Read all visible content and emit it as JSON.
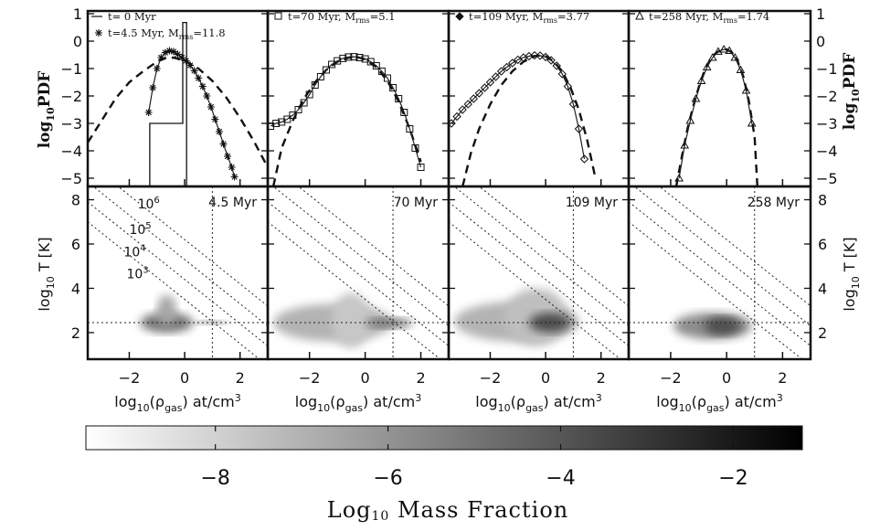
{
  "chart_data": {
    "type": "multi-panel",
    "density_axis": {
      "label_main": "log",
      "label_sub": "10",
      "label_rest": "(ρ",
      "label_gas": "gas",
      "label_unit": ") at/cm",
      "label_sup": "3",
      "xlim": [
        -3.5,
        3.0
      ],
      "ticks": [
        -2,
        0,
        2
      ],
      "tick_labels": [
        "−2",
        "0",
        "2"
      ]
    },
    "pdf_axis": {
      "label": "log",
      "label_sub": "10",
      "label_rest": "PDF",
      "ylim": [
        -5.3,
        1.1
      ],
      "ticks": [
        -5,
        -4,
        -3,
        -2,
        -1,
        0,
        1
      ],
      "tick_labels": [
        "−5",
        "−4",
        "−3",
        "−2",
        "−1",
        "0",
        "1"
      ]
    },
    "temp_axis": {
      "label": "log",
      "label_sub": "10",
      "label_rest": " T [K]",
      "ylim": [
        0.8,
        8.6
      ],
      "ticks": [
        2,
        4,
        6,
        8
      ],
      "tick_labels": [
        "2",
        "4",
        "6",
        "8"
      ]
    },
    "reference_lines": {
      "dotted_vertical_density": 1.0,
      "dotted_horizontal_logT": 2.45,
      "isobar_labels": [
        "10",
        "10",
        "10",
        "10"
      ],
      "isobar_exps": [
        "6",
        "5",
        "4",
        "3"
      ],
      "isobar_intercepts": [
        6.2,
        5.3,
        4.4,
        3.5
      ],
      "isobar_label_positions": [
        [
          -1.3,
          7.6
        ],
        [
          -1.6,
          6.45
        ],
        [
          -1.8,
          5.45
        ],
        [
          -1.7,
          4.45
        ]
      ]
    },
    "panels": [
      {
        "time_label": "4.5 Myr",
        "legend": [
          {
            "text": "t=  0 Myr",
            "marker": "line"
          },
          {
            "text": "t=4.5 Myr, M",
            "sub": "rms",
            "tail": "=11.8",
            "marker": "asterisk"
          }
        ],
        "initial_pdf": {
          "x": [
            -1.26,
            -1.26,
            -0.07,
            -0.07,
            0.07,
            0.07
          ],
          "y": [
            -5.3,
            -3.0,
            -3.0,
            0.68,
            0.68,
            -5.3
          ]
        },
        "gaussian_pdf": {
          "x": [
            -3.5,
            -3.0,
            -2.5,
            -2.0,
            -1.5,
            -1.0,
            -0.7,
            -0.4,
            0.0,
            0.5,
            1.0,
            1.5,
            2.0,
            2.5,
            3.0
          ],
          "y": [
            -3.7,
            -2.9,
            -2.1,
            -1.5,
            -1.1,
            -0.75,
            -0.62,
            -0.6,
            -0.72,
            -1.0,
            -1.45,
            -2.05,
            -2.8,
            -3.65,
            -4.6
          ]
        },
        "sim_pdf": {
          "x": [
            -1.3,
            -1.15,
            -1.0,
            -0.85,
            -0.7,
            -0.55,
            -0.4,
            -0.25,
            -0.1,
            0.05,
            0.2,
            0.35,
            0.5,
            0.65,
            0.8,
            0.95,
            1.1,
            1.25,
            1.4,
            1.55,
            1.7,
            1.8
          ],
          "y": [
            -2.6,
            -1.7,
            -1.0,
            -0.6,
            -0.42,
            -0.35,
            -0.38,
            -0.48,
            -0.6,
            -0.72,
            -0.88,
            -1.08,
            -1.35,
            -1.65,
            -2.0,
            -2.4,
            -2.85,
            -3.3,
            -3.75,
            -4.2,
            -4.6,
            -4.95
          ]
        },
        "sim_marker": "asterisk",
        "gas": {
          "blobs": [
            {
              "x": [
                -1.6,
                0.3
              ],
              "y": [
                2.0,
                2.9
              ],
              "shade": 0.55
            },
            {
              "x": [
                -1.0,
                -0.3
              ],
              "y": [
                2.3,
                3.7
              ],
              "shade": 0.35
            },
            {
              "x": [
                0.3,
                1.6
              ],
              "y": [
                2.35,
                2.55
              ],
              "shade": 0.45
            }
          ]
        }
      },
      {
        "time_label": "70  Myr",
        "legend": [
          {
            "text": "t=70 Myr, M",
            "sub": "rms",
            "tail": "=5.1",
            "marker": "square"
          }
        ],
        "gaussian_pdf": {
          "x": [
            -3.3,
            -3.0,
            -2.6,
            -2.2,
            -1.8,
            -1.4,
            -1.0,
            -0.6,
            -0.3,
            0.0,
            0.4,
            0.8,
            1.2,
            1.6,
            2.0
          ],
          "y": [
            -5.3,
            -3.9,
            -2.9,
            -2.1,
            -1.5,
            -1.05,
            -0.75,
            -0.6,
            -0.58,
            -0.66,
            -0.95,
            -1.45,
            -2.2,
            -3.2,
            -4.4
          ]
        },
        "sim_pdf": {
          "x": [
            -3.4,
            -3.2,
            -3.0,
            -2.8,
            -2.6,
            -2.4,
            -2.2,
            -2.0,
            -1.8,
            -1.6,
            -1.4,
            -1.2,
            -1.0,
            -0.8,
            -0.6,
            -0.4,
            -0.2,
            0.0,
            0.2,
            0.4,
            0.6,
            0.8,
            1.0,
            1.2,
            1.4,
            1.6,
            1.8,
            2.0
          ],
          "y": [
            -3.1,
            -3.0,
            -2.95,
            -2.85,
            -2.7,
            -2.5,
            -2.25,
            -1.95,
            -1.6,
            -1.3,
            -1.05,
            -0.85,
            -0.72,
            -0.63,
            -0.58,
            -0.57,
            -0.6,
            -0.65,
            -0.75,
            -0.9,
            -1.1,
            -1.35,
            -1.7,
            -2.1,
            -2.6,
            -3.2,
            -3.9,
            -4.6
          ]
        },
        "sim_marker": "square",
        "gas": {
          "blobs": [
            {
              "x": [
                -3.3,
                1.0
              ],
              "y": [
                1.6,
                3.3
              ],
              "shade": 0.3
            },
            {
              "x": [
                -1.2,
                0.2
              ],
              "y": [
                1.3,
                3.8
              ],
              "shade": 0.22
            },
            {
              "x": [
                0.0,
                1.7
              ],
              "y": [
                2.2,
                2.65
              ],
              "shade": 0.55
            }
          ]
        }
      },
      {
        "time_label": "109 Myr",
        "legend": [
          {
            "text": "t=109 Myr, M",
            "sub": "rms",
            "tail": "=3.77",
            "marker": "diamond"
          }
        ],
        "gaussian_pdf": {
          "x": [
            -3.0,
            -2.7,
            -2.4,
            -2.0,
            -1.6,
            -1.2,
            -0.8,
            -0.4,
            -0.2,
            0.0,
            0.3,
            0.6,
            0.9,
            1.2,
            1.5,
            1.8
          ],
          "y": [
            -5.3,
            -4.1,
            -3.2,
            -2.3,
            -1.6,
            -1.1,
            -0.75,
            -0.55,
            -0.52,
            -0.55,
            -0.75,
            -1.1,
            -1.7,
            -2.5,
            -3.6,
            -5.0
          ]
        },
        "sim_pdf": {
          "x": [
            -3.4,
            -3.2,
            -3.0,
            -2.8,
            -2.6,
            -2.4,
            -2.2,
            -2.0,
            -1.8,
            -1.6,
            -1.4,
            -1.2,
            -1.0,
            -0.8,
            -0.6,
            -0.4,
            -0.2,
            0.0,
            0.2,
            0.4,
            0.6,
            0.8,
            1.0,
            1.2,
            1.4
          ],
          "y": [
            -3.0,
            -2.75,
            -2.5,
            -2.3,
            -2.1,
            -1.9,
            -1.7,
            -1.5,
            -1.3,
            -1.1,
            -0.95,
            -0.8,
            -0.68,
            -0.6,
            -0.55,
            -0.52,
            -0.53,
            -0.58,
            -0.7,
            -0.9,
            -1.2,
            -1.65,
            -2.3,
            -3.2,
            -4.3
          ]
        },
        "sim_marker": "diamond",
        "gas": {
          "blobs": [
            {
              "x": [
                -3.3,
                1.2
              ],
              "y": [
                1.6,
                3.4
              ],
              "shade": 0.3
            },
            {
              "x": [
                -1.5,
                0.8
              ],
              "y": [
                1.4,
                4.0
              ],
              "shade": 0.25
            },
            {
              "x": [
                -0.6,
                0.9
              ],
              "y": [
                2.0,
                2.9
              ],
              "shade": 0.7
            }
          ]
        }
      },
      {
        "time_label": "258 Myr",
        "legend": [
          {
            "text": "t=258 Myr, M",
            "sub": "rms",
            "tail": "=1.74",
            "marker": "triangle"
          }
        ],
        "gaussian_pdf": {
          "x": [
            -1.8,
            -1.6,
            -1.4,
            -1.2,
            -1.0,
            -0.8,
            -0.6,
            -0.4,
            -0.2,
            0.0,
            0.2,
            0.4,
            0.6,
            0.8,
            1.0,
            1.1
          ],
          "y": [
            -5.3,
            -4.2,
            -3.2,
            -2.4,
            -1.7,
            -1.1,
            -0.7,
            -0.45,
            -0.32,
            -0.3,
            -0.42,
            -0.75,
            -1.3,
            -2.2,
            -3.5,
            -5.3
          ]
        },
        "sim_pdf": {
          "x": [
            -1.7,
            -1.5,
            -1.3,
            -1.1,
            -0.9,
            -0.7,
            -0.5,
            -0.3,
            -0.1,
            0.1,
            0.3,
            0.5,
            0.7,
            0.9
          ],
          "y": [
            -5.0,
            -3.8,
            -2.9,
            -2.1,
            -1.45,
            -0.95,
            -0.6,
            -0.38,
            -0.3,
            -0.35,
            -0.6,
            -1.05,
            -1.8,
            -3.0
          ]
        },
        "sim_marker": "triangle",
        "gas": {
          "blobs": [
            {
              "x": [
                -1.9,
                0.9
              ],
              "y": [
                1.7,
                2.9
              ],
              "shade": 0.45
            },
            {
              "x": [
                -0.8,
                0.5
              ],
              "y": [
                1.9,
                2.7
              ],
              "shade": 0.7
            }
          ]
        }
      }
    ],
    "colorbar": {
      "label_main": "Log",
      "label_sub": "10",
      "label_rest": " Mass Fraction",
      "range": [
        -9.5,
        -1.2
      ],
      "ticks": [
        -8,
        -6,
        -4,
        -2
      ],
      "tick_labels": [
        "−8",
        "−6",
        "−4",
        "−2"
      ],
      "cmap": [
        "#ffffff",
        "#000000"
      ]
    }
  }
}
